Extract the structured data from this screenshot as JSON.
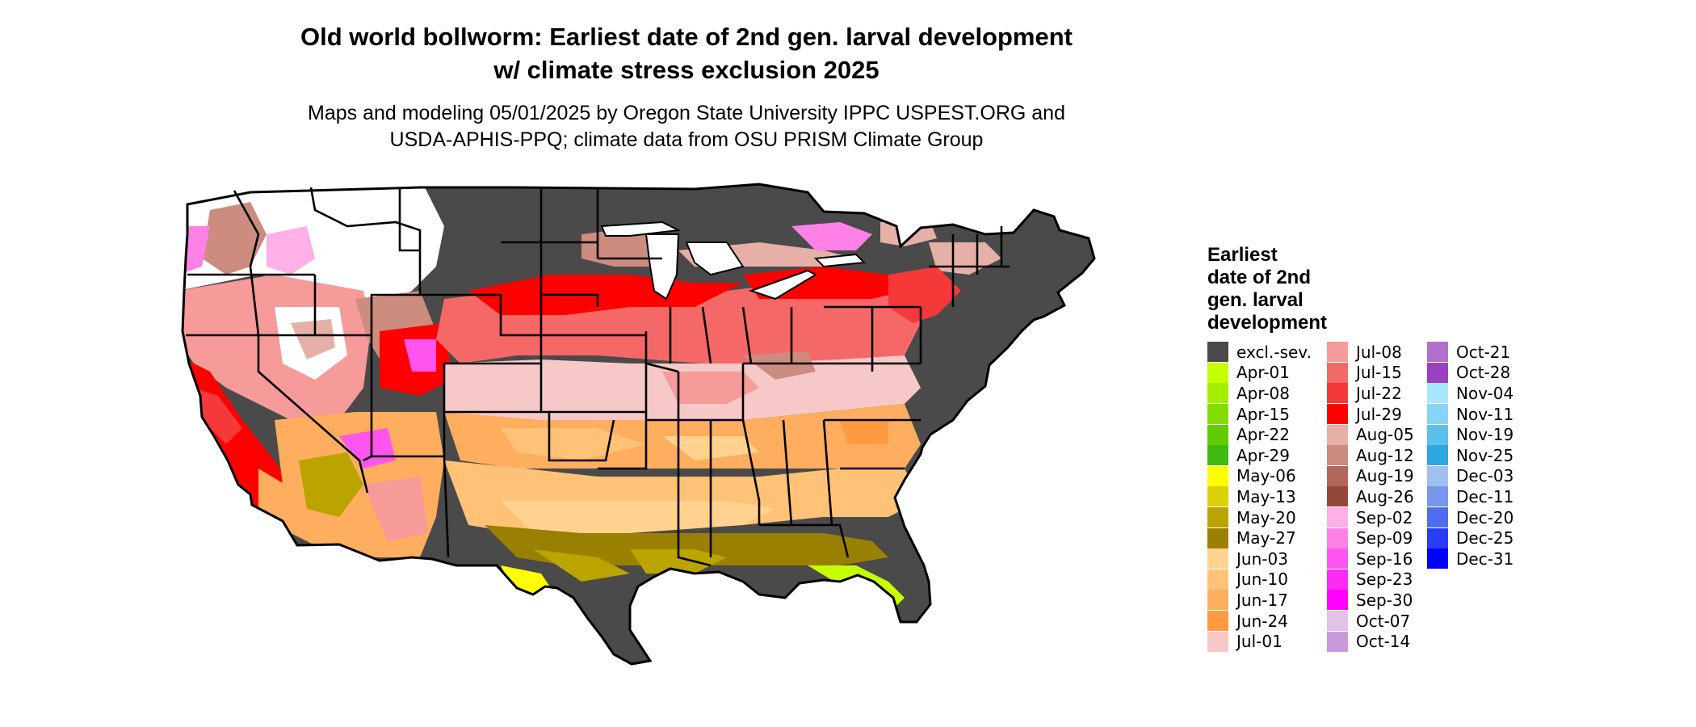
{
  "title": {
    "line1": "Old world bollworm: Earliest date of 2nd gen. larval development",
    "line2": "w/ climate stress exclusion 2025"
  },
  "subtitle": {
    "line1": "Maps and modeling 05/01/2025 by Oregon State University IPPC USPEST.ORG and",
    "line2": "USDA-APHIS-PPQ; climate data from OSU PRISM Climate Group"
  },
  "legend": {
    "title_lines": [
      "Earliest",
      "date of 2nd",
      "gen. larval",
      "development"
    ],
    "columns": [
      [
        {
          "label": "excl.-sev.",
          "color": "#4a4a4a"
        },
        {
          "label": "Apr-01",
          "color": "#c6ff00"
        },
        {
          "label": "Apr-08",
          "color": "#a6ee00"
        },
        {
          "label": "Apr-15",
          "color": "#85dd00"
        },
        {
          "label": "Apr-22",
          "color": "#62cc00"
        },
        {
          "label": "Apr-29",
          "color": "#3ebb10"
        },
        {
          "label": "May-06",
          "color": "#ffff00"
        },
        {
          "label": "May-13",
          "color": "#dcd000"
        },
        {
          "label": "May-20",
          "color": "#bba300"
        },
        {
          "label": "May-27",
          "color": "#9a8000"
        },
        {
          "label": "Jun-03",
          "color": "#ffd38f"
        },
        {
          "label": "Jun-10",
          "color": "#ffc277"
        },
        {
          "label": "Jun-17",
          "color": "#ffad5e"
        },
        {
          "label": "Jun-24",
          "color": "#ff9a40"
        },
        {
          "label": "Jul-01",
          "color": "#f6c8c8"
        }
      ],
      [
        {
          "label": "Jul-08",
          "color": "#f69a9a"
        },
        {
          "label": "Jul-15",
          "color": "#f56868"
        },
        {
          "label": "Jul-22",
          "color": "#f53838"
        },
        {
          "label": "Jul-29",
          "color": "#ff0000"
        },
        {
          "label": "Aug-05",
          "color": "#e6b0a8"
        },
        {
          "label": "Aug-12",
          "color": "#cc8c80"
        },
        {
          "label": "Aug-19",
          "color": "#b06858"
        },
        {
          "label": "Aug-26",
          "color": "#934838"
        },
        {
          "label": "Sep-02",
          "color": "#ffb0e6"
        },
        {
          "label": "Sep-09",
          "color": "#ff80e6"
        },
        {
          "label": "Sep-16",
          "color": "#ff55ee"
        },
        {
          "label": "Sep-23",
          "color": "#ff2af5"
        },
        {
          "label": "Sep-30",
          "color": "#ff00ff"
        },
        {
          "label": "Oct-07",
          "color": "#e2c2e8"
        },
        {
          "label": "Oct-14",
          "color": "#c89bd8"
        }
      ],
      [
        {
          "label": "Oct-21",
          "color": "#b070cc"
        },
        {
          "label": "Oct-28",
          "color": "#9a40c0"
        },
        {
          "label": "Nov-04",
          "color": "#a8e6fa"
        },
        {
          "label": "Nov-11",
          "color": "#88d4f4"
        },
        {
          "label": "Nov-19",
          "color": "#5cc0ea"
        },
        {
          "label": "Nov-25",
          "color": "#2ea6e0"
        },
        {
          "label": "Dec-03",
          "color": "#a0c0ee"
        },
        {
          "label": "Dec-11",
          "color": "#7896ee"
        },
        {
          "label": "Dec-20",
          "color": "#4e6cf0"
        },
        {
          "label": "Dec-25",
          "color": "#2a3cf4"
        },
        {
          "label": "Dec-31",
          "color": "#0000ff"
        }
      ]
    ]
  },
  "map": {
    "background": "#ffffff",
    "border_color": "#000000"
  }
}
